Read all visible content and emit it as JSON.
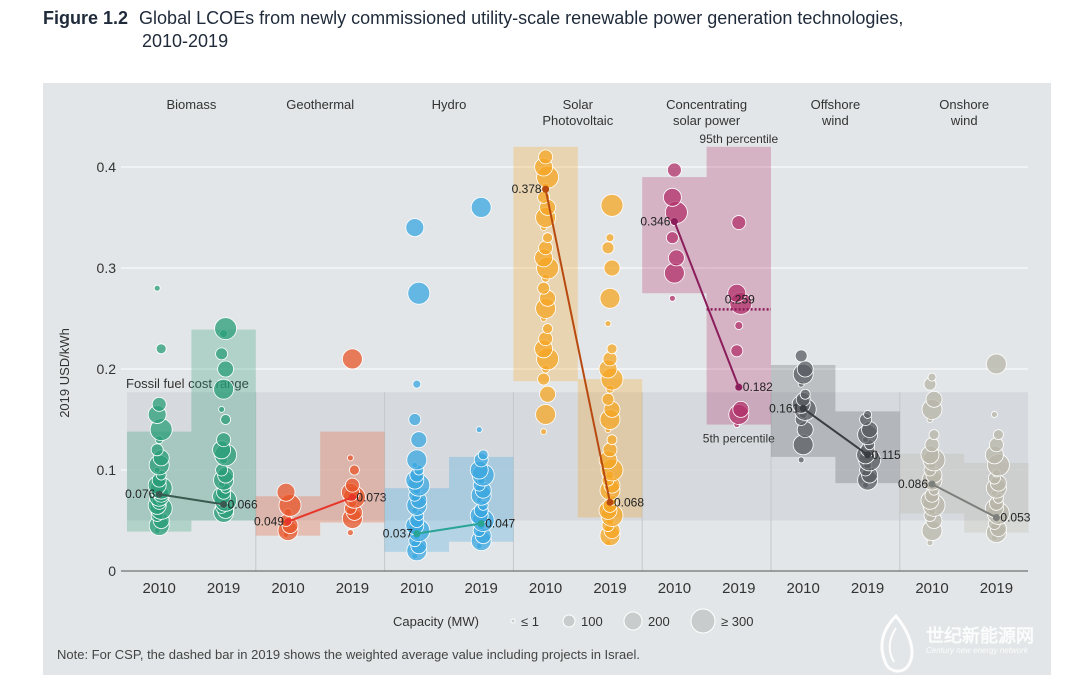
{
  "figure": {
    "label": "Figure 1.2",
    "title_line1": "Global LCOEs from newly commissioned utility-scale renewable power generation technologies,",
    "title_line2": "2010-2019"
  },
  "note": "Note: For CSP, the dashed bar in 2019 shows the weighted average value including projects in Israel.",
  "watermark": {
    "text": "世纪新能源网",
    "sub": "Century new energy network"
  },
  "colors": {
    "background": "#e3e6e8",
    "fossil_band": "#d2d6d9",
    "biomass": "#2a9d78",
    "geothermal": "#e8562a",
    "hydro": "#3aa7e0",
    "solar_pv": "#f5a623",
    "csp": "#b0306a",
    "offshore": "#5a5e63",
    "onshore": "#b8b6a8",
    "text": "#333333"
  },
  "chart_data": {
    "type": "scatter",
    "ylabel": "2019 USD/kWh",
    "xlabel": "",
    "ylim": [
      0,
      0.42
    ],
    "yticks": [
      0,
      0.1,
      0.2,
      0.3,
      0.4
    ],
    "ytick_labels": [
      "0",
      "0.1",
      "0.2",
      "0.3",
      "0.4"
    ],
    "fossil_fuel_range": {
      "label": "Fossil fuel cost range",
      "low": 0.05,
      "high": 0.177
    },
    "technologies": [
      {
        "name": "Biomass",
        "line_color": "#3a5a50",
        "years": [
          {
            "year": "2010",
            "box": [
              0.039,
              0.138
            ],
            "weighted_average": 0.076,
            "label": "0.076",
            "bubbles": [
              0.04,
              0.045,
              0.05,
              0.055,
              0.06,
              0.062,
              0.065,
              0.068,
              0.07,
              0.072,
              0.074,
              0.076,
              0.078,
              0.08,
              0.082,
              0.085,
              0.09,
              0.095,
              0.1,
              0.105,
              0.112,
              0.12,
              0.13,
              0.14,
              0.155,
              0.165,
              0.22,
              0.28
            ]
          },
          {
            "year": "2019",
            "box": [
              0.05,
              0.239
            ],
            "weighted_average": 0.066,
            "label": "0.066",
            "bubbles": [
              0.055,
              0.058,
              0.06,
              0.063,
              0.066,
              0.07,
              0.074,
              0.078,
              0.082,
              0.086,
              0.09,
              0.095,
              0.1,
              0.11,
              0.115,
              0.12,
              0.13,
              0.15,
              0.16,
              0.18,
              0.2,
              0.215,
              0.235,
              0.24
            ]
          }
        ]
      },
      {
        "name": "Geothermal",
        "line_color": "#e8352a",
        "years": [
          {
            "year": "2010",
            "box": [
              0.035,
              0.074
            ],
            "weighted_average": 0.049,
            "label": "0.049",
            "bubbles": [
              0.036,
              0.04,
              0.045,
              0.05,
              0.058,
              0.065,
              0.078
            ]
          },
          {
            "year": "2019",
            "box": [
              0.048,
              0.138
            ],
            "weighted_average": 0.073,
            "label": "0.073",
            "bubbles": [
              0.038,
              0.052,
              0.058,
              0.062,
              0.067,
              0.073,
              0.078,
              0.085,
              0.1,
              0.112,
              0.21
            ]
          }
        ]
      },
      {
        "name": "Hydro",
        "line_color": "#2aa595",
        "years": [
          {
            "year": "2010",
            "box": [
              0.019,
              0.082
            ],
            "weighted_average": 0.037,
            "label": "0.037",
            "bubbles": [
              0.015,
              0.02,
              0.025,
              0.03,
              0.035,
              0.04,
              0.045,
              0.05,
              0.055,
              0.06,
              0.065,
              0.07,
              0.075,
              0.08,
              0.085,
              0.09,
              0.095,
              0.1,
              0.105,
              0.11,
              0.13,
              0.15,
              0.185,
              0.275,
              0.34
            ]
          },
          {
            "year": "2019",
            "box": [
              0.029,
              0.113
            ],
            "weighted_average": 0.047,
            "label": "0.047",
            "bubbles": [
              0.025,
              0.03,
              0.035,
              0.04,
              0.045,
              0.05,
              0.055,
              0.06,
              0.065,
              0.07,
              0.075,
              0.08,
              0.085,
              0.09,
              0.095,
              0.1,
              0.11,
              0.115,
              0.14,
              0.36
            ]
          }
        ]
      },
      {
        "name": "Solar\nPhotovoltaic",
        "line_color": "#b84a10",
        "years": [
          {
            "year": "2010",
            "box": [
              0.188,
              0.42
            ],
            "weighted_average": 0.378,
            "label": "0.378",
            "bubbles": [
              0.138,
              0.155,
              0.175,
              0.19,
              0.2,
              0.21,
              0.22,
              0.23,
              0.24,
              0.25,
              0.26,
              0.27,
              0.28,
              0.29,
              0.3,
              0.31,
              0.32,
              0.33,
              0.34,
              0.35,
              0.36,
              0.37,
              0.38,
              0.39,
              0.4,
              0.41
            ]
          },
          {
            "year": "2019",
            "box": [
              0.053,
              0.19
            ],
            "weighted_average": 0.068,
            "label": "0.068",
            "bubbles": [
              0.028,
              0.035,
              0.04,
              0.045,
              0.05,
              0.055,
              0.06,
              0.065,
              0.07,
              0.075,
              0.08,
              0.085,
              0.09,
              0.095,
              0.1,
              0.11,
              0.12,
              0.13,
              0.14,
              0.15,
              0.16,
              0.17,
              0.18,
              0.19,
              0.2,
              0.21,
              0.22,
              0.245,
              0.27,
              0.3,
              0.32,
              0.33,
              0.362
            ]
          }
        ]
      },
      {
        "name": "Concentrating\nsolar power",
        "line_color": "#8a1d5a",
        "years": [
          {
            "year": "2010",
            "box": [
              0.275,
              0.39
            ],
            "weighted_average": 0.346,
            "label": "0.346",
            "bubbles": [
              0.27,
              0.295,
              0.31,
              0.33,
              0.346,
              0.355,
              0.37,
              0.397
            ]
          },
          {
            "year": "2019",
            "box": [
              0.145,
              0.42
            ],
            "weighted_average": 0.182,
            "label": "0.182",
            "bubbles": [
              0.145,
              0.155,
              0.16,
              0.218,
              0.243,
              0.265,
              0.275,
              0.345
            ]
          }
        ],
        "dashed_2019": {
          "value": 0.259,
          "label": "0.259"
        },
        "annotations": [
          "95th percentile",
          "5th percentile"
        ]
      },
      {
        "name": "Offshore\nwind",
        "line_color": "#3a3e43",
        "years": [
          {
            "year": "2010",
            "box": [
              0.113,
              0.204
            ],
            "weighted_average": 0.161,
            "label": "0.161",
            "bubbles": [
              0.11,
              0.125,
              0.14,
              0.15,
              0.155,
              0.16,
              0.165,
              0.17,
              0.175,
              0.185,
              0.195,
              0.2,
              0.213
            ]
          },
          {
            "year": "2019",
            "box": [
              0.087,
              0.158
            ],
            "weighted_average": 0.115,
            "label": "0.115",
            "bubbles": [
              0.085,
              0.09,
              0.095,
              0.1,
              0.105,
              0.11,
              0.115,
              0.12,
              0.125,
              0.13,
              0.135,
              0.14,
              0.15,
              0.155
            ]
          }
        ]
      },
      {
        "name": "Onshore\nwind",
        "line_color": "#7d7f7c",
        "years": [
          {
            "year": "2010",
            "box": [
              0.057,
              0.116
            ],
            "weighted_average": 0.086,
            "label": "0.086",
            "bubbles": [
              0.028,
              0.04,
              0.05,
              0.055,
              0.06,
              0.065,
              0.07,
              0.075,
              0.08,
              0.085,
              0.09,
              0.095,
              0.1,
              0.105,
              0.11,
              0.115,
              0.125,
              0.135,
              0.15,
              0.16,
              0.17,
              0.185,
              0.192
            ]
          },
          {
            "year": "2019",
            "box": [
              0.038,
              0.107
            ],
            "weighted_average": 0.053,
            "label": "0.053",
            "bubbles": [
              0.033,
              0.038,
              0.042,
              0.047,
              0.052,
              0.057,
              0.062,
              0.067,
              0.072,
              0.077,
              0.082,
              0.087,
              0.092,
              0.097,
              0.105,
              0.115,
              0.125,
              0.135,
              0.155,
              0.205
            ]
          }
        ]
      }
    ],
    "legend": {
      "title": "Capacity (MW)",
      "items": [
        "≤ 1",
        "100",
        "200",
        "≥ 300"
      ]
    }
  }
}
